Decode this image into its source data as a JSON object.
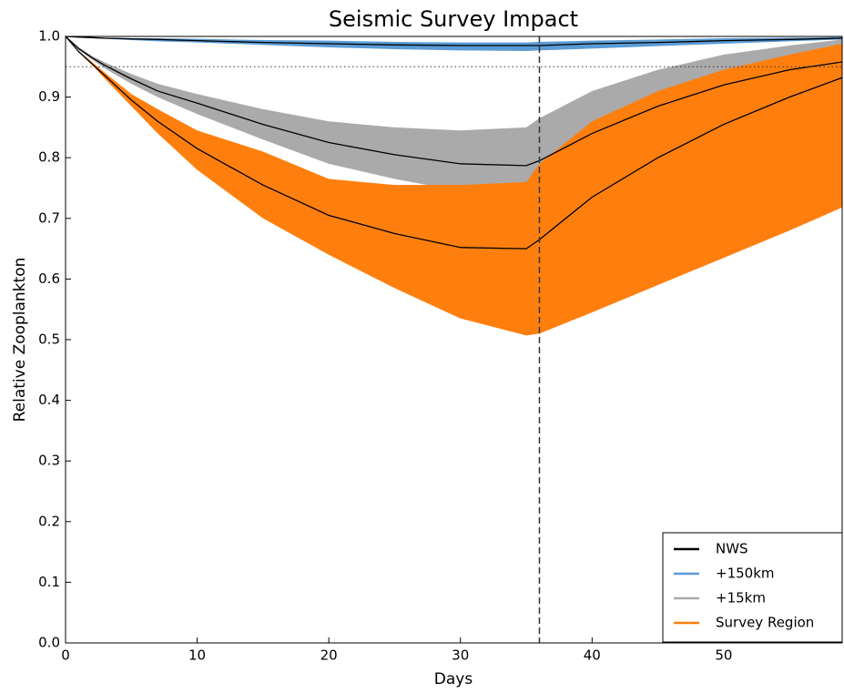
{
  "chart_data": {
    "type": "band-line",
    "title": "Seismic Survey Impact",
    "x_label": "Days",
    "y_label": "Relative Zooplankton",
    "xlim": [
      0,
      59
    ],
    "ylim": [
      0,
      1
    ],
    "xticks": [
      0,
      10,
      20,
      30,
      40,
      50
    ],
    "yticks": [
      {
        "value": 0,
        "label": "0.0"
      },
      0.1,
      0.2,
      0.3,
      0.4,
      0.5,
      0.6,
      0.7,
      0.8,
      0.9,
      {
        "value": 1,
        "label": "1.0"
      }
    ],
    "threshold": 0.95,
    "survey_end": 36,
    "legend": "lower right",
    "mean_line": {
      "name": "NWS",
      "color": "#000000"
    },
    "x": [
      0,
      1,
      2,
      3,
      5,
      7,
      10,
      15,
      20,
      25,
      30,
      35,
      36,
      40,
      45,
      50,
      55,
      59
    ],
    "series": [
      {
        "name": "+150km",
        "color": "#5b9bd5",
        "values": [
          1.0,
          0.999,
          0.998,
          0.997,
          0.996,
          0.995,
          0.993,
          0.99,
          0.988,
          0.986,
          0.985,
          0.985,
          0.985,
          0.988,
          0.99,
          0.993,
          0.995,
          0.997
        ],
        "lower": [
          1.0,
          0.998,
          0.997,
          0.996,
          0.994,
          0.992,
          0.99,
          0.986,
          0.982,
          0.979,
          0.977,
          0.976,
          0.977,
          0.98,
          0.984,
          0.988,
          0.992,
          0.995
        ],
        "upper": [
          1.0,
          0.999,
          0.999,
          0.998,
          0.997,
          0.997,
          0.996,
          0.994,
          0.993,
          0.991,
          0.99,
          0.99,
          0.991,
          0.993,
          0.995,
          0.997,
          0.998,
          0.999
        ]
      },
      {
        "name": "+15km",
        "color": "#aaaaaa",
        "values": [
          1.0,
          0.98,
          0.965,
          0.952,
          0.93,
          0.91,
          0.89,
          0.855,
          0.825,
          0.805,
          0.79,
          0.787,
          0.795,
          0.84,
          0.885,
          0.92,
          0.945,
          0.958
        ],
        "lower": [
          1.0,
          0.978,
          0.962,
          0.947,
          0.922,
          0.9,
          0.872,
          0.83,
          0.79,
          0.765,
          0.745,
          0.74,
          0.75,
          0.8,
          0.85,
          0.89,
          0.92,
          0.935
        ],
        "upper": [
          1.0,
          0.982,
          0.968,
          0.957,
          0.938,
          0.922,
          0.905,
          0.88,
          0.86,
          0.85,
          0.845,
          0.85,
          0.865,
          0.91,
          0.945,
          0.97,
          0.985,
          0.995
        ]
      },
      {
        "name": "Survey Region",
        "color": "#ff7f0e",
        "values": [
          1.0,
          0.975,
          0.955,
          0.935,
          0.895,
          0.86,
          0.815,
          0.755,
          0.705,
          0.675,
          0.652,
          0.65,
          0.665,
          0.735,
          0.8,
          0.855,
          0.9,
          0.932
        ],
        "lower": [
          1.0,
          0.974,
          0.953,
          0.93,
          0.885,
          0.84,
          0.78,
          0.7,
          0.64,
          0.585,
          0.535,
          0.507,
          0.51,
          0.545,
          0.59,
          0.635,
          0.68,
          0.718
        ],
        "upper": [
          1.0,
          0.976,
          0.958,
          0.94,
          0.905,
          0.88,
          0.845,
          0.81,
          0.765,
          0.755,
          0.755,
          0.76,
          0.79,
          0.86,
          0.91,
          0.945,
          0.97,
          0.988
        ]
      }
    ]
  }
}
